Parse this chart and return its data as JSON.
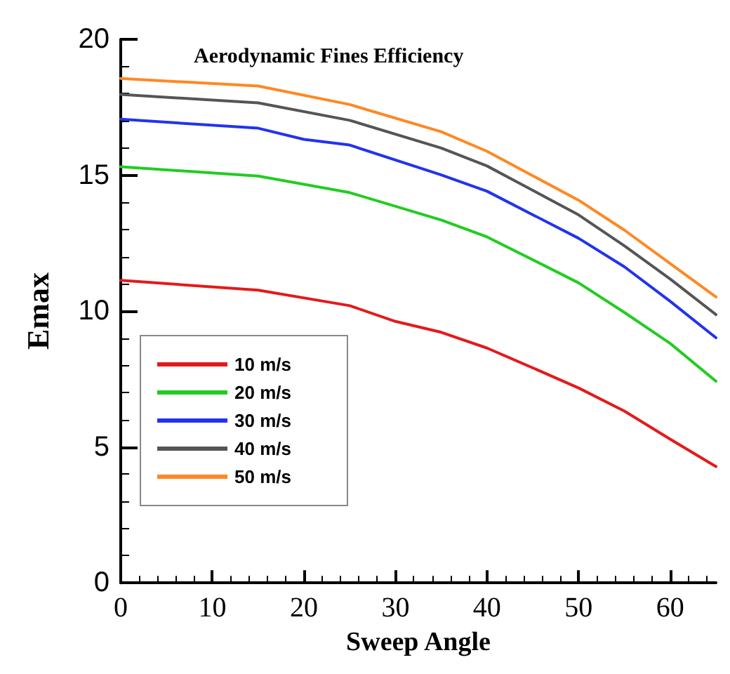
{
  "chart_data": {
    "type": "line",
    "title": "Aerodynamic Fines Efficiency",
    "xlabel": "Sweep Angle",
    "ylabel": "Emax",
    "series": [
      {
        "name": "10 m/s",
        "color": "#e31a1c",
        "x": [
          0,
          15,
          25,
          30,
          35,
          40,
          45,
          50,
          55,
          60,
          65
        ],
        "values": [
          11.13,
          10.77,
          10.2,
          9.62,
          9.22,
          8.64,
          7.91,
          7.17,
          6.32,
          5.29,
          4.28
        ]
      },
      {
        "name": "20 m/s",
        "color": "#22cc22",
        "x": [
          0,
          15,
          25,
          35,
          40,
          50,
          55,
          60,
          65
        ],
        "values": [
          15.31,
          14.97,
          14.36,
          13.35,
          12.73,
          11.04,
          9.95,
          8.81,
          7.42
        ]
      },
      {
        "name": "30 m/s",
        "color": "#2233ee",
        "x": [
          0,
          15,
          20,
          25,
          35,
          40,
          50,
          55,
          60,
          65
        ],
        "values": [
          17.06,
          16.73,
          16.32,
          16.11,
          15.01,
          14.41,
          12.68,
          11.63,
          10.36,
          9.02
        ]
      },
      {
        "name": "40 m/s",
        "color": "#555555",
        "x": [
          0,
          15,
          25,
          35,
          40,
          50,
          55,
          60,
          65
        ],
        "values": [
          17.97,
          17.66,
          17.02,
          16.0,
          15.34,
          13.54,
          12.4,
          11.18,
          9.87
        ]
      },
      {
        "name": "50 m/s",
        "color": "#ff8822",
        "x": [
          0,
          15,
          25,
          35,
          40,
          50,
          55,
          60,
          65
        ],
        "values": [
          18.56,
          18.28,
          17.6,
          16.6,
          15.88,
          14.08,
          12.98,
          11.75,
          10.52
        ]
      }
    ],
    "xlim": [
      0,
      65
    ],
    "xticks": [
      0,
      10,
      20,
      30,
      40,
      50,
      60
    ],
    "ylim": [
      0,
      20
    ],
    "yticks": [
      0,
      5,
      10,
      15,
      20
    ],
    "grid": false,
    "legend": "bottom left",
    "marker": "none",
    "line_style": "solid"
  }
}
